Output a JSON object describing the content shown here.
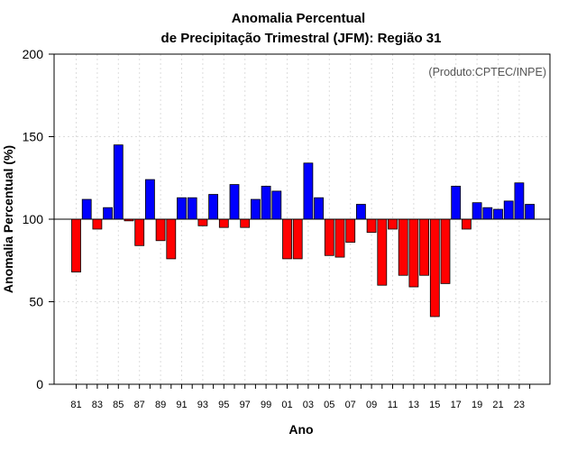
{
  "header": {
    "title_line1": "Anomalia Percentual",
    "title_line2": "de Precipitação Trimestral (JFM): Região 31"
  },
  "credit": "(Produto:CPTEC/INPE)",
  "chart_data": {
    "type": "bar",
    "title": "Anomalia Percentual de Precipitação Trimestral (JFM): Região 31",
    "xlabel": "Ano",
    "ylabel": "Anomalia Percentual (%)",
    "ylim": [
      0,
      200
    ],
    "yticks": [
      "0",
      "50",
      "100",
      "150",
      "200"
    ],
    "baseline": 100,
    "grid": true,
    "categories": [
      "81",
      "82",
      "83",
      "84",
      "85",
      "86",
      "87",
      "88",
      "89",
      "90",
      "91",
      "92",
      "93",
      "94",
      "95",
      "96",
      "97",
      "98",
      "99",
      "00",
      "01",
      "02",
      "03",
      "04",
      "05",
      "06",
      "07",
      "08",
      "09",
      "10",
      "11",
      "12",
      "13",
      "14",
      "15",
      "16",
      "17",
      "18",
      "19",
      "20",
      "21",
      "22",
      "23",
      "24"
    ],
    "tick_labels": [
      "81",
      "83",
      "85",
      "87",
      "89",
      "91",
      "93",
      "95",
      "97",
      "99",
      "01",
      "03",
      "05",
      "07",
      "09",
      "11",
      "13",
      "15",
      "17",
      "19",
      "21",
      "23"
    ],
    "values": [
      68,
      112,
      94,
      107,
      145,
      99,
      84,
      124,
      87,
      76,
      113,
      113,
      96,
      115,
      95,
      121,
      95,
      112,
      120,
      117,
      76,
      76,
      134,
      113,
      78,
      77,
      86,
      109,
      92,
      60,
      94,
      66,
      59,
      66,
      41,
      61,
      120,
      94,
      110,
      107,
      106,
      111,
      122,
      109
    ],
    "colors": {
      "above": "#0000ff",
      "below": "#ff0000"
    }
  }
}
